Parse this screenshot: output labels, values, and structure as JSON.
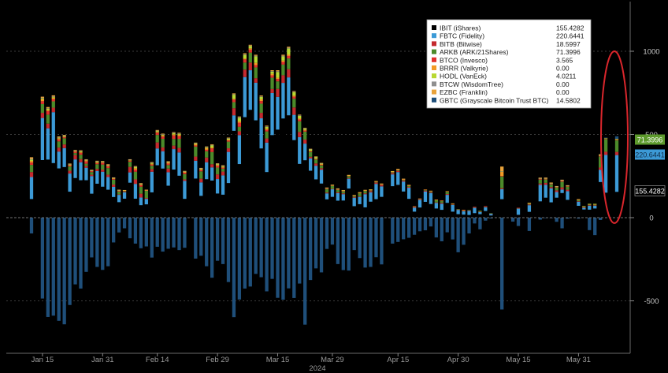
{
  "chart_data": {
    "type": "bar",
    "stacked": true,
    "xlabel": "2024",
    "ylim": [
      -800,
      1300
    ],
    "yticks": [
      1000,
      500,
      0,
      -500
    ],
    "grid": true,
    "legend_position": "top-right",
    "xticks": [
      "Jan 15",
      "Jan 31",
      "Feb 14",
      "Feb 29",
      "Mar 15",
      "Mar 29",
      "Apr 15",
      "Apr 30",
      "May 15",
      "May 31"
    ],
    "series": [
      {
        "name": "IBIT (iShares)",
        "last": "155.4282",
        "color": "#000000",
        "values": [
          112,
          0,
          346,
          349,
          328,
          296,
          304,
          156,
          238,
          225,
          225,
          144,
          204,
          186,
          168,
          124,
          93,
          114,
          210,
          114,
          75,
          80,
          152,
          315,
          295,
          192,
          289,
          252,
          113,
          0,
          235,
          131,
          231,
          223,
          145,
          138,
          208,
          522,
          322,
          604,
          648,
          585,
          416,
          274,
          496,
          529,
          596,
          615,
          466,
          323,
          345,
          282,
          230,
          205,
          110,
          125,
          102,
          103,
          175,
          69,
          81,
          62,
          96,
          111,
          125,
          0,
          189,
          197,
          157,
          113,
          36,
          61,
          95,
          82,
          55,
          47,
          89,
          36,
          21,
          18,
          16,
          27,
          21,
          40,
          13,
          0,
          111,
          0,
          0,
          17,
          0,
          35,
          0,
          98,
          120,
          92,
          120,
          148,
          107,
          0,
          71,
          49,
          48,
          55,
          214,
          150,
          0,
          155
        ]
      },
      {
        "name": "FBTC (Fidelity)",
        "last": "220.6441",
        "color": "#3c9ad6",
        "values": [
          132,
          0,
          253,
          188,
          306,
          101,
          114,
          109,
          112,
          108,
          75,
          106,
          76,
          90,
          76,
          61,
          44,
          38,
          62,
          89,
          46,
          33,
          124,
          101,
          104,
          81,
          123,
          140,
          108,
          0,
          107,
          81,
          102,
          79,
          87,
          116,
          187,
          93,
          174,
          241,
          238,
          226,
          181,
          177,
          253,
          197,
          214,
          228,
          152,
          161,
          100,
          74,
          82,
          83,
          36,
          46,
          45,
          38,
          59,
          51,
          44,
          79,
          56,
          92,
          63,
          0,
          71,
          77,
          60,
          67,
          24,
          46,
          62,
          66,
          34,
          37,
          48,
          40,
          26,
          21,
          25,
          33,
          14,
          22,
          11,
          0,
          60,
          0,
          0,
          37,
          0,
          40,
          0,
          99,
          77,
          84,
          34,
          21,
          52,
          0,
          25,
          10,
          24,
          16,
          74,
          227,
          0,
          221
        ]
      },
      {
        "name": "BITB (Bitwise)",
        "last": "18.5997",
        "color": "#c42a2e",
        "values": [
          30,
          0,
          31,
          28,
          27,
          24,
          22,
          17,
          26,
          19,
          11,
          8,
          13,
          13,
          14,
          14,
          3,
          3,
          33,
          27,
          23,
          5,
          16,
          36,
          23,
          22,
          21,
          27,
          9,
          0,
          25,
          22,
          28,
          19,
          28,
          23,
          22,
          43,
          23,
          45,
          46,
          27,
          33,
          25,
          24,
          48,
          46,
          49,
          44,
          31,
          24,
          10,
          14,
          9,
          5,
          2,
          5,
          5,
          4,
          4,
          4,
          5,
          7,
          8,
          9,
          0,
          7,
          7,
          6,
          5,
          5,
          3,
          5,
          4,
          3,
          5,
          5,
          3,
          2,
          2,
          2,
          1,
          1,
          3,
          1,
          0,
          6,
          0,
          0,
          3,
          0,
          4,
          0,
          8,
          12,
          8,
          10,
          13,
          9,
          0,
          3,
          3,
          3,
          3,
          13,
          19,
          0,
          19
        ]
      },
      {
        "name": "ARKB (ARK/21Shares)",
        "last": "71.3996",
        "color": "#4c8a2a",
        "values": [
          43,
          0,
          53,
          54,
          38,
          37,
          37,
          26,
          12,
          26,
          13,
          16,
          28,
          30,
          40,
          29,
          17,
          4,
          31,
          46,
          42,
          44,
          20,
          45,
          52,
          21,
          40,
          55,
          32,
          0,
          60,
          44,
          38,
          73,
          41,
          17,
          40,
          36,
          27,
          42,
          60,
          65,
          55,
          42,
          68,
          45,
          64,
          65,
          53,
          64,
          48,
          29,
          24,
          17,
          21,
          19,
          16,
          13,
          12,
          6,
          18,
          16,
          5,
          4,
          2,
          0,
          6,
          5,
          5,
          7,
          1,
          3,
          5,
          7,
          15,
          12,
          14,
          5,
          3,
          4,
          3,
          3,
          6,
          3,
          2,
          0,
          70,
          0,
          0,
          1,
          0,
          5,
          0,
          24,
          21,
          17,
          17,
          34,
          18,
          0,
          7,
          4,
          5,
          6,
          67,
          76,
          0,
          71
        ]
      },
      {
        "name": "BTCO (Invesco)",
        "last": "3.565",
        "color": "#e1302c",
        "values": [
          14,
          0,
          17,
          22,
          13,
          12,
          6,
          5,
          8,
          12,
          14,
          5,
          7,
          11,
          10,
          4,
          4,
          3,
          6,
          13,
          9,
          2,
          7,
          14,
          13,
          9,
          21,
          16,
          8,
          0,
          7,
          8,
          9,
          22,
          10,
          6,
          7,
          15,
          25,
          19,
          18,
          14,
          16,
          10,
          14,
          14,
          16,
          15,
          12,
          11,
          6,
          4,
          2,
          3,
          3,
          2,
          2,
          2,
          2,
          2,
          2,
          1,
          2,
          2,
          2,
          0,
          2,
          1,
          2,
          1,
          1,
          1,
          1,
          1,
          1,
          1,
          2,
          1,
          0,
          1,
          0,
          1,
          0,
          1,
          0,
          0,
          3,
          0,
          0,
          1,
          0,
          2,
          0,
          4,
          4,
          3,
          3,
          5,
          3,
          0,
          2,
          1,
          1,
          1,
          4,
          3,
          0,
          4
        ]
      },
      {
        "name": "BRRR (Valkyrie)",
        "last": "0.00",
        "color": "#f29a26",
        "values": [
          10,
          0,
          11,
          6,
          9,
          7,
          4,
          5,
          4,
          4,
          6,
          4,
          5,
          3,
          4,
          4,
          2,
          2,
          3,
          9,
          5,
          2,
          5,
          4,
          7,
          7,
          7,
          8,
          5,
          0,
          7,
          5,
          10,
          6,
          6,
          5,
          5,
          6,
          8,
          6,
          8,
          13,
          10,
          8,
          9,
          8,
          8,
          9,
          7,
          7,
          5,
          3,
          3,
          5,
          3,
          2,
          2,
          2,
          2,
          2,
          2,
          2,
          2,
          1,
          2,
          0,
          2,
          2,
          2,
          2,
          1,
          1,
          1,
          2,
          1,
          1,
          1,
          1,
          0,
          1,
          0,
          0,
          0,
          0,
          0,
          0,
          27,
          0,
          0,
          0,
          0,
          1,
          0,
          3,
          2,
          3,
          2,
          3,
          2,
          0,
          1,
          1,
          1,
          1,
          2,
          0,
          0,
          0
        ]
      },
      {
        "name": "HODL (VanEck)",
        "last": "4.0211",
        "color": "#b8d832",
        "values": [
          8,
          0,
          5,
          8,
          4,
          4,
          5,
          3,
          3,
          6,
          3,
          1,
          5,
          4,
          4,
          3,
          2,
          1,
          3,
          6,
          4,
          1,
          6,
          6,
          5,
          4,
          7,
          6,
          3,
          0,
          5,
          5,
          5,
          14,
          5,
          5,
          7,
          24,
          20,
          21,
          13,
          39,
          15,
          10,
          14,
          35,
          25,
          36,
          20,
          15,
          7,
          9,
          10,
          4,
          1,
          1,
          2,
          2,
          2,
          1,
          1,
          1,
          1,
          1,
          1,
          0,
          1,
          2,
          1,
          1,
          0,
          0,
          0,
          0,
          0,
          0,
          0,
          0,
          0,
          0,
          0,
          0,
          0,
          0,
          0,
          0,
          1,
          0,
          0,
          0,
          0,
          1,
          0,
          1,
          2,
          1,
          1,
          1,
          1,
          0,
          1,
          1,
          1,
          1,
          4,
          3,
          0,
          4
        ]
      },
      {
        "name": "BTCW (WisdomTree)",
        "last": "0.00",
        "color": "#8f8f8f",
        "values": [
          4,
          0,
          3,
          2,
          3,
          2,
          1,
          1,
          1,
          1,
          1,
          1,
          1,
          1,
          1,
          1,
          1,
          0,
          1,
          2,
          1,
          0,
          1,
          2,
          2,
          1,
          2,
          2,
          1,
          0,
          2,
          1,
          2,
          1,
          2,
          2,
          2,
          3,
          4,
          4,
          3,
          4,
          3,
          3,
          3,
          4,
          4,
          4,
          3,
          3,
          2,
          1,
          1,
          1,
          1,
          0,
          1,
          0,
          0,
          0,
          0,
          0,
          0,
          0,
          0,
          0,
          0,
          0,
          0,
          0,
          0,
          0,
          0,
          0,
          0,
          0,
          0,
          0,
          0,
          0,
          0,
          0,
          0,
          0,
          0,
          0,
          1,
          0,
          0,
          0,
          0,
          0,
          0,
          1,
          1,
          1,
          1,
          1,
          1,
          0,
          0,
          0,
          0,
          0,
          1,
          0,
          0,
          0
        ]
      },
      {
        "name": "EZBC (Franklin)",
        "last": "0.00",
        "color": "#e9a33b",
        "values": [
          10,
          0,
          8,
          8,
          7,
          5,
          4,
          3,
          3,
          4,
          3,
          3,
          3,
          3,
          4,
          2,
          2,
          1,
          2,
          4,
          3,
          1,
          3,
          4,
          4,
          2,
          4,
          4,
          2,
          0,
          3,
          2,
          3,
          4,
          3,
          3,
          3,
          5,
          5,
          6,
          5,
          6,
          5,
          4,
          5,
          6,
          6,
          6,
          4,
          4,
          3,
          2,
          2,
          2,
          1,
          1,
          1,
          1,
          1,
          1,
          1,
          1,
          1,
          1,
          1,
          0,
          2,
          2,
          1,
          1,
          0,
          0,
          0,
          0,
          0,
          0,
          0,
          0,
          0,
          0,
          0,
          0,
          0,
          0,
          0,
          0,
          28,
          0,
          0,
          0,
          0,
          1,
          0,
          3,
          2,
          2,
          2,
          2,
          2,
          0,
          1,
          0,
          0,
          0,
          2,
          0,
          0,
          0
        ]
      },
      {
        "name": "GBTC (Grayscale Bitcoin Trust BTC)",
        "last": "14.5802",
        "color": "#1f4f7a",
        "values": [
          -95,
          0,
          -486,
          -597,
          -589,
          -620,
          -641,
          -525,
          -401,
          -426,
          -326,
          -239,
          -296,
          -314,
          -292,
          -149,
          -89,
          -64,
          -124,
          -156,
          -184,
          -173,
          -240,
          -175,
          -204,
          -187,
          -179,
          -195,
          -181,
          0,
          -246,
          -229,
          -292,
          -361,
          -259,
          -279,
          -387,
          -598,
          -492,
          -426,
          -414,
          -338,
          -358,
          -443,
          -368,
          -482,
          -493,
          -425,
          -483,
          -396,
          -643,
          -375,
          -305,
          -329,
          -188,
          -162,
          -279,
          -315,
          -318,
          -195,
          -243,
          -300,
          -296,
          -238,
          -281,
          0,
          -156,
          -146,
          -130,
          -121,
          -103,
          -82,
          -76,
          -53,
          -119,
          -142,
          -88,
          -131,
          -208,
          -163,
          -95,
          -35,
          -70,
          -18,
          -5,
          0,
          -552,
          0,
          -24,
          -50,
          0,
          -80,
          0,
          -12,
          -2,
          -3,
          -25,
          -64,
          -6,
          0,
          -6,
          0,
          -75,
          -105,
          -14,
          3,
          0,
          15
        ]
      }
    ]
  }
}
